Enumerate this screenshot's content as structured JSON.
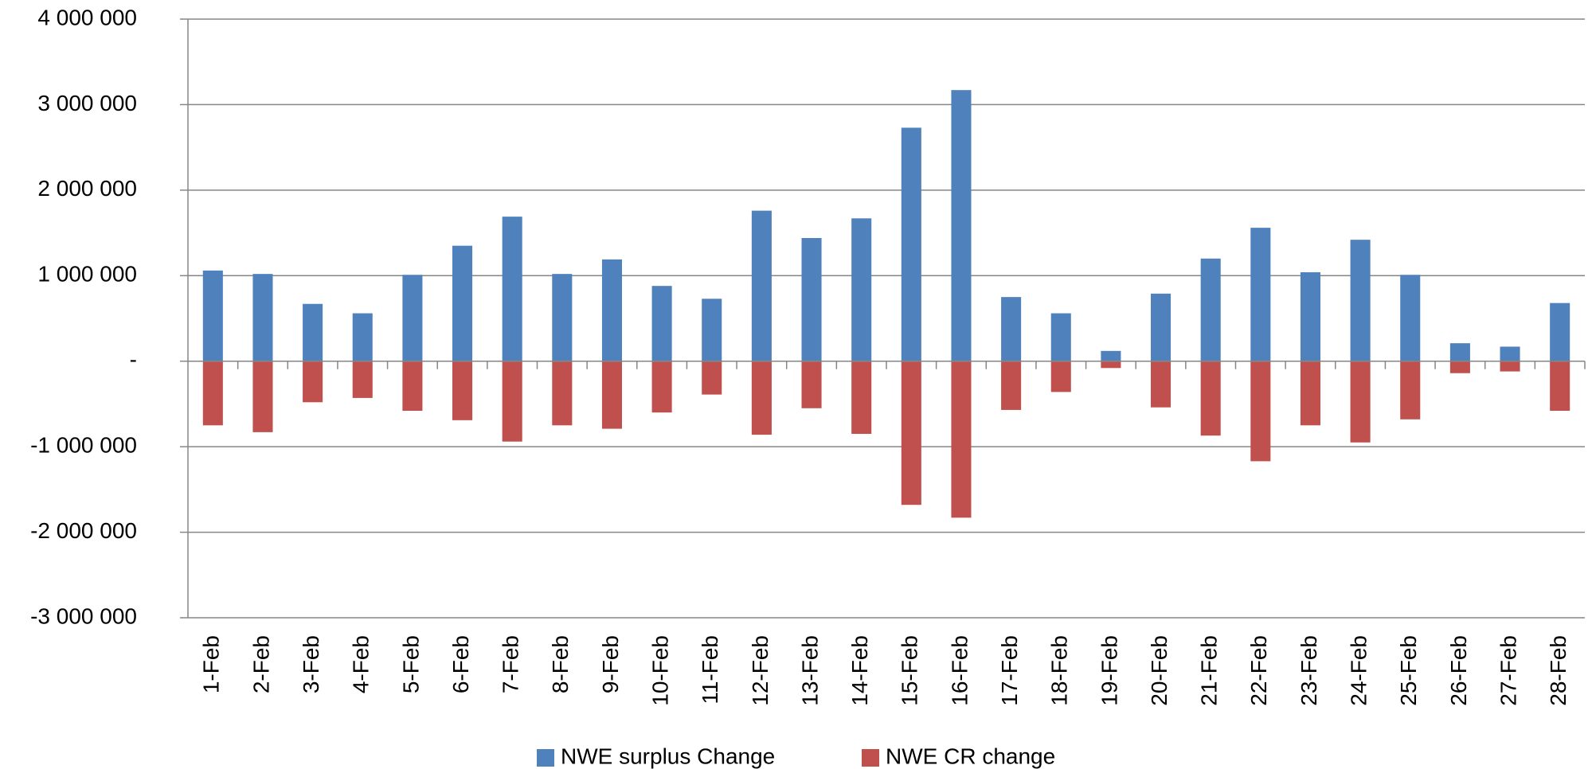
{
  "chart_data": {
    "type": "bar",
    "stacked": true,
    "categories": [
      "1-Feb",
      "2-Feb",
      "3-Feb",
      "4-Feb",
      "5-Feb",
      "6-Feb",
      "7-Feb",
      "8-Feb",
      "9-Feb",
      "10-Feb",
      "11-Feb",
      "12-Feb",
      "13-Feb",
      "14-Feb",
      "15-Feb",
      "16-Feb",
      "17-Feb",
      "18-Feb",
      "19-Feb",
      "20-Feb",
      "21-Feb",
      "22-Feb",
      "23-Feb",
      "24-Feb",
      "25-Feb",
      "26-Feb",
      "27-Feb",
      "28-Feb"
    ],
    "series": [
      {
        "name": "NWE surplus Change",
        "color": "#4f81bd",
        "values": [
          1060000,
          1020000,
          670000,
          560000,
          1010000,
          1350000,
          1690000,
          1020000,
          1190000,
          880000,
          730000,
          1760000,
          1440000,
          1670000,
          2730000,
          3170000,
          750000,
          560000,
          120000,
          790000,
          1200000,
          1560000,
          1040000,
          1420000,
          1010000,
          210000,
          170000,
          680000
        ]
      },
      {
        "name": "NWE CR change",
        "color": "#c0504d",
        "values": [
          -750000,
          -830000,
          -480000,
          -430000,
          -580000,
          -690000,
          -940000,
          -750000,
          -790000,
          -600000,
          -390000,
          -860000,
          -550000,
          -850000,
          -1680000,
          -1830000,
          -570000,
          -360000,
          -80000,
          -540000,
          -870000,
          -1170000,
          -750000,
          -950000,
          -680000,
          -140000,
          -120000,
          -580000
        ]
      }
    ],
    "ylim": [
      -3000000,
      4000000
    ],
    "yticks": [
      {
        "value": -3000000,
        "label": "-3 000 000"
      },
      {
        "value": -2000000,
        "label": "-2 000 000"
      },
      {
        "value": -1000000,
        "label": "-1 000 000"
      },
      {
        "value": 0,
        "label": "-"
      },
      {
        "value": 1000000,
        "label": "1 000 000"
      },
      {
        "value": 2000000,
        "label": "2 000 000"
      },
      {
        "value": 3000000,
        "label": "3 000 000"
      },
      {
        "value": 4000000,
        "label": "4 000 000"
      }
    ],
    "grid": true,
    "legend": "bottom"
  }
}
